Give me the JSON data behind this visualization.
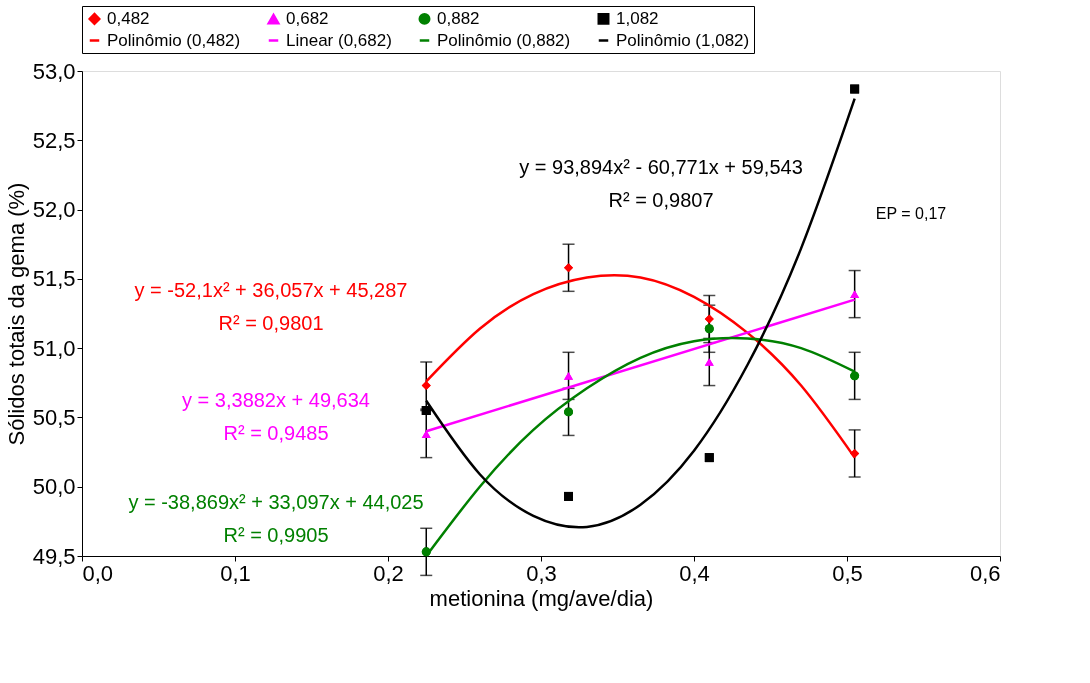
{
  "chart_data": {
    "type": "scatter",
    "xlabel": "metionina (mg/ave/dia)",
    "ylabel": "Sólidos totais da gema (%)",
    "xlim": [
      0,
      0.6
    ],
    "xticks": [
      {
        "value": 0,
        "label": "0,0"
      },
      {
        "value": 0.1,
        "label": "0,1"
      },
      {
        "value": 0.2,
        "label": "0,2"
      },
      {
        "value": 0.3,
        "label": "0,3"
      },
      {
        "value": 0.4,
        "label": "0,4"
      },
      {
        "value": 0.5,
        "label": "0,5"
      },
      {
        "value": 0.6,
        "label": "0,6"
      }
    ],
    "ylim": [
      49.5,
      53
    ],
    "yticks": [
      {
        "value": 49.5,
        "label": "49,5"
      },
      {
        "value": 50,
        "label": "50,0"
      },
      {
        "value": 50.5,
        "label": "50,5"
      },
      {
        "value": 51,
        "label": "51,0"
      },
      {
        "value": 51.5,
        "label": "51,5"
      },
      {
        "value": 52,
        "label": "52,0"
      },
      {
        "value": 52.5,
        "label": "52,5"
      },
      {
        "value": 53,
        "label": "53,0"
      }
    ],
    "grid": false,
    "legend": "top",
    "series": [
      {
        "name": "0,482",
        "marker": "diamond",
        "color": "#ff0000",
        "x": [
          0.225,
          0.318,
          0.41,
          0.505
        ],
        "values": [
          50.73,
          51.58,
          51.21,
          50.24
        ],
        "errors": [
          0.17,
          0.17,
          0.17,
          0.17
        ]
      },
      {
        "name": "0,682",
        "marker": "triangle",
        "color": "#ff00ff",
        "x": [
          0.225,
          0.318,
          0.41,
          0.505
        ],
        "values": [
          50.38,
          50.8,
          50.9,
          51.39
        ],
        "errors": [
          0.17,
          0.17,
          0.17,
          0.17
        ]
      },
      {
        "name": "0,882",
        "marker": "circle",
        "color": "#008000",
        "x": [
          0.225,
          0.318,
          0.41,
          0.505
        ],
        "values": [
          49.53,
          50.54,
          51.14,
          50.8
        ],
        "errors": [
          0.17,
          0.17,
          0.17,
          0.17
        ]
      },
      {
        "name": "1,082",
        "marker": "square",
        "color": "#000000",
        "x": [
          0.225,
          0.318,
          0.41,
          0.505
        ],
        "values": [
          50.55,
          49.93,
          50.21,
          52.87
        ]
      },
      {
        "name": "Polinômio (0,482)",
        "type": "line",
        "marker": "none",
        "color": "#ff0000",
        "x": [
          0.225,
          0.26,
          0.295,
          0.33,
          0.365,
          0.4,
          0.435,
          0.47,
          0.505
        ],
        "values": [
          50.76,
          51.14,
          51.39,
          51.51,
          51.51,
          51.37,
          51.11,
          50.73,
          50.21
        ]
      },
      {
        "name": "Linear (0,682)",
        "type": "line",
        "marker": "none",
        "color": "#ff00ff",
        "x": [
          0.225,
          0.505
        ],
        "values": [
          50.4,
          51.35
        ]
      },
      {
        "name": "Polinômio (0,882)",
        "type": "line",
        "marker": "none",
        "color": "#008000",
        "x": [
          0.225,
          0.26,
          0.295,
          0.33,
          0.365,
          0.4,
          0.435,
          0.47,
          0.505
        ],
        "values": [
          49.5,
          50.0,
          50.41,
          50.71,
          50.93,
          51.05,
          51.07,
          51.0,
          50.83
        ]
      },
      {
        "name": "Polinômio (1,082)",
        "type": "line",
        "marker": "none",
        "color": "#000000",
        "x": [
          0.225,
          0.26,
          0.295,
          0.33,
          0.365,
          0.4,
          0.435,
          0.47,
          0.505
        ],
        "values": [
          50.62,
          50.09,
          49.79,
          49.71,
          49.87,
          50.26,
          50.88,
          51.72,
          52.8
        ]
      }
    ],
    "annotations": [
      "y = 93,894x² - 60,771x + 59,543\nR² = 0,9807",
      "EP = 0,17",
      "y = -52,1x² + 36,057x + 45,287\nR² = 0,9801",
      "y = 3,3882x + 49,634\nR² = 0,9485",
      "y = -38,869x² + 33,097x + 44,025\nR² = 0,9905"
    ]
  }
}
